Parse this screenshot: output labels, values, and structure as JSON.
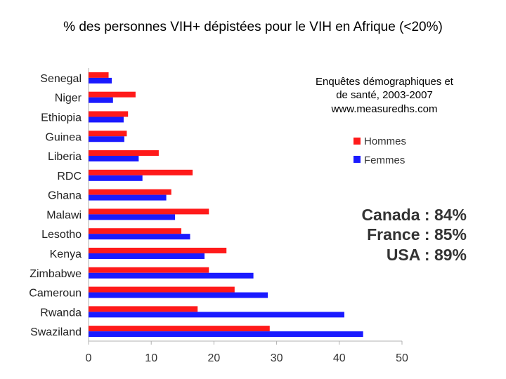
{
  "title": "% des personnes VIH+ dépistées pour le VIH en Afrique (<20%)",
  "source_lines": [
    "Enquêtes démographiques et",
    "de santé, 2003-2007",
    "www.measuredhs.com"
  ],
  "reference_lines": [
    "Canada : 84%",
    "France : 85%",
    "USA : 89%"
  ],
  "colors": {
    "hommes": "#ff1a1a",
    "femmes": "#1a1aff"
  },
  "chart_data": {
    "type": "bar",
    "orientation": "horizontal",
    "title": "% des personnes VIH+ dépistées pour le VIH en Afrique (<20%)",
    "categories": [
      "Senegal",
      "Niger",
      "Ethiopia",
      "Guinea",
      "Liberia",
      "RDC",
      "Ghana",
      "Malawi",
      "Lesotho",
      "Kenya",
      "Zimbabwe",
      "Cameroun",
      "Rwanda",
      "Swaziland"
    ],
    "series": [
      {
        "name": "Hommes",
        "values": [
          3.2,
          7.5,
          6.3,
          6.1,
          11.2,
          16.6,
          13.2,
          19.2,
          14.8,
          22.0,
          19.2,
          23.3,
          17.4,
          28.9
        ]
      },
      {
        "name": "Femmes",
        "values": [
          3.7,
          3.9,
          5.6,
          5.7,
          8.0,
          8.6,
          12.4,
          13.8,
          16.2,
          18.5,
          26.3,
          28.6,
          40.8,
          43.8
        ]
      }
    ],
    "xlim": [
      0,
      50
    ],
    "xticks": [
      0,
      10,
      20,
      30,
      40,
      50
    ],
    "grid": false,
    "legend": "right"
  }
}
